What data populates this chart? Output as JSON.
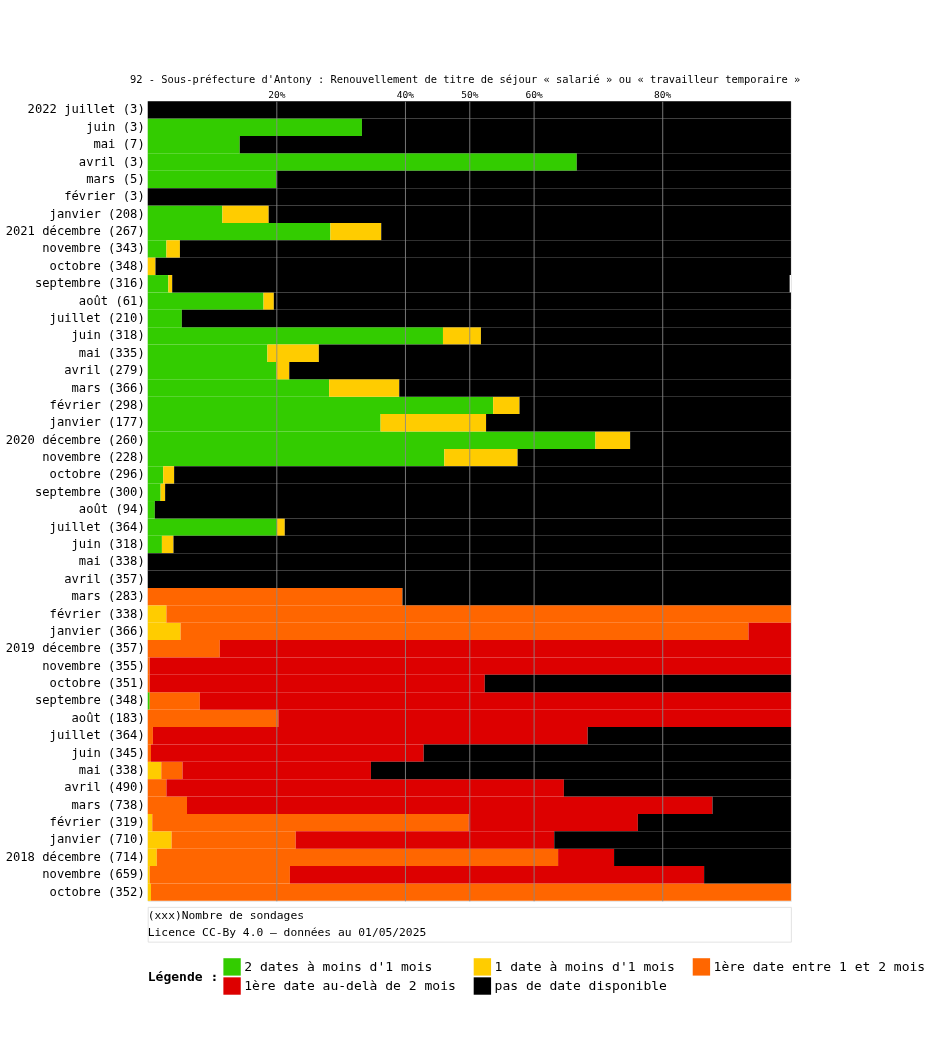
{
  "chart_data": {
    "type": "bar",
    "orientation": "horizontal",
    "stacked": true,
    "title": "92 - Sous-préfecture d'Antony : Renouvellement de titre de séjour « salarié » ou « travailleur temporaire »",
    "categories": [
      "2022 juillet (3)",
      "juin (3)",
      "mai (7)",
      "avril (3)",
      "mars (5)",
      "février (3)",
      "janvier (208)",
      "2021 décembre (267)",
      "novembre (343)",
      "octobre (348)",
      "septembre (316)",
      "août (61)",
      "juillet (210)",
      "juin (318)",
      "mai (335)",
      "avril (279)",
      "mars (366)",
      "février (298)",
      "janvier (177)",
      "2020 décembre (260)",
      "novembre (228)",
      "octobre (296)",
      "septembre (300)",
      "août (94)",
      "juillet (364)",
      "juin (318)",
      "mai (338)",
      "avril (357)",
      "mars (283)",
      "février (338)",
      "janvier (366)",
      "2019 décembre (357)",
      "novembre (355)",
      "octobre (351)",
      "septembre (348)",
      "août (183)",
      "juillet (364)",
      "juin (345)",
      "mai (338)",
      "avril (490)",
      "mars (738)",
      "février (319)",
      "janvier (710)",
      "2018 décembre (714)",
      "novembre (659)",
      "octobre (352)"
    ],
    "series": [
      {
        "name": "2 dates à moins d'1 mois",
        "color": "#33cc00",
        "values": [
          0,
          33.3,
          14.3,
          66.7,
          20,
          0,
          11.6,
          28.4,
          2.9,
          0,
          3.2,
          18.0,
          5.3,
          45.9,
          18.6,
          20.0,
          28.2,
          53.7,
          36.2,
          69.6,
          46.1,
          2.4,
          2.0,
          1.1,
          20.1,
          2.2,
          0,
          0,
          0,
          0,
          0,
          0,
          0,
          0,
          0.3,
          0,
          0,
          0,
          0,
          0,
          0,
          0,
          0,
          0,
          0,
          0
        ]
      },
      {
        "name": "1 date à moins d'1 mois",
        "color": "#ffcc00",
        "values": [
          0,
          0,
          0,
          0,
          0,
          0,
          7.2,
          7.9,
          2.1,
          1.2,
          0.6,
          1.6,
          0,
          5.9,
          8.0,
          2.0,
          10.9,
          4.1,
          16.4,
          5.4,
          11.4,
          1.7,
          0.7,
          0,
          1.2,
          1.8,
          0,
          0,
          0,
          2.9,
          5.1,
          0,
          0,
          0,
          0,
          0,
          0,
          0,
          2.1,
          0,
          0,
          0.7,
          3.7,
          1.4,
          0.3,
          0.5
        ]
      },
      {
        "name": "1ère date entre 1 et 2 mois",
        "color": "#ff6600",
        "values": [
          0,
          0,
          0,
          0,
          0,
          0,
          0,
          0,
          0,
          0,
          0,
          0,
          0,
          0,
          0,
          0,
          0,
          0,
          0,
          0,
          0,
          0,
          0,
          0,
          0,
          0,
          0,
          0,
          39.6,
          97.1,
          88.3,
          11.2,
          0.3,
          0.3,
          7.8,
          20.3,
          0.8,
          0.5,
          3.3,
          2.9,
          6.1,
          49.2,
          19.3,
          62.4,
          21.8,
          99.5
        ]
      },
      {
        "name": "1ère date au-delà de 2 mois",
        "color": "#dd0000",
        "values": [
          0,
          0,
          0,
          0,
          0,
          0,
          0,
          0,
          0,
          0,
          0,
          0,
          0,
          0,
          0,
          0,
          0,
          0,
          0,
          0,
          0,
          0,
          0,
          0,
          0,
          0,
          0,
          0,
          0,
          0,
          6.6,
          88.8,
          99.7,
          52.1,
          91.9,
          79.7,
          67.6,
          42.4,
          29.3,
          61.8,
          81.7,
          26.3,
          40.2,
          8.7,
          64.4,
          0
        ]
      },
      {
        "name": "pas de date disponible",
        "color": "#000000",
        "values": [
          100,
          66.7,
          85.7,
          33.3,
          80,
          100,
          81.2,
          63.7,
          95.0,
          98.8,
          96.0,
          80.4,
          94.7,
          48.2,
          73.4,
          78.0,
          60.9,
          42.2,
          47.4,
          25.0,
          42.5,
          95.9,
          97.3,
          98.9,
          78.7,
          96.0,
          100,
          100,
          60.4,
          0,
          0,
          0,
          0,
          47.6,
          0,
          0,
          31.6,
          57.1,
          65.3,
          35.3,
          12.2,
          23.8,
          36.8,
          27.5,
          13.5,
          0
        ]
      }
    ],
    "xlim": [
      0,
      100
    ],
    "xticks": [
      {
        "value": 20,
        "label": "20%"
      },
      {
        "value": 40,
        "label": "40%"
      },
      {
        "value": 50,
        "label": "50%"
      },
      {
        "value": 60,
        "label": "60%"
      },
      {
        "value": 80,
        "label": "80%"
      }
    ],
    "grid": "x",
    "legend": "bottom",
    "legend_title": "Légende :",
    "annotations": [
      "(xxx)Nombre de sondages",
      "Licence CC-By 4.0 — données au 01/05/2025"
    ]
  }
}
